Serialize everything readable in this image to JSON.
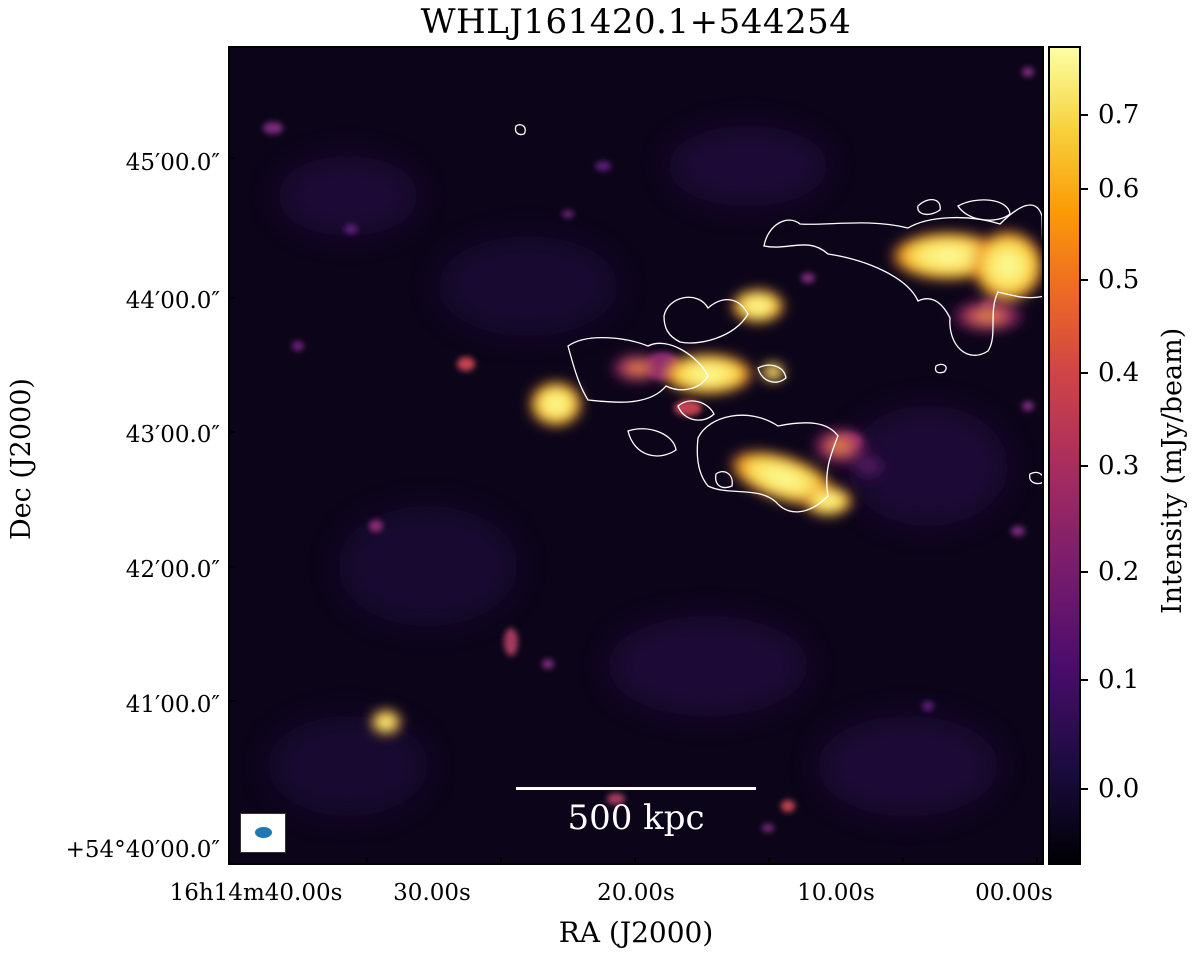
{
  "title": "WHLJ161420.1+544254",
  "scalebar_label": "500 kpc",
  "xlabel": "RA (J2000)",
  "ylabel": "Dec (J2000)",
  "colorbar_label": "Intensity (mJy/beam)",
  "colormap": "inferno",
  "xticks": [
    {
      "label": "16h14m40.00s"
    },
    {
      "label": "30.00s"
    },
    {
      "label": "20.00s"
    },
    {
      "label": "10.00s"
    },
    {
      "label": "00.00s"
    }
  ],
  "yticks": [
    {
      "label": "45′00.0″"
    },
    {
      "label": "44′00.0″"
    },
    {
      "label": "43′00.0″"
    },
    {
      "label": "42′00.0″"
    },
    {
      "label": "41′00.0″"
    },
    {
      "label": "+54°40′00.0″"
    }
  ],
  "colorbar_ticks": [
    "0.7",
    "0.6",
    "0.5",
    "0.4",
    "0.3",
    "0.2",
    "0.1",
    "0.0"
  ],
  "colors": {
    "background": "#0c0519",
    "contour": "#ffffff",
    "beam": "#1f77b4"
  }
}
